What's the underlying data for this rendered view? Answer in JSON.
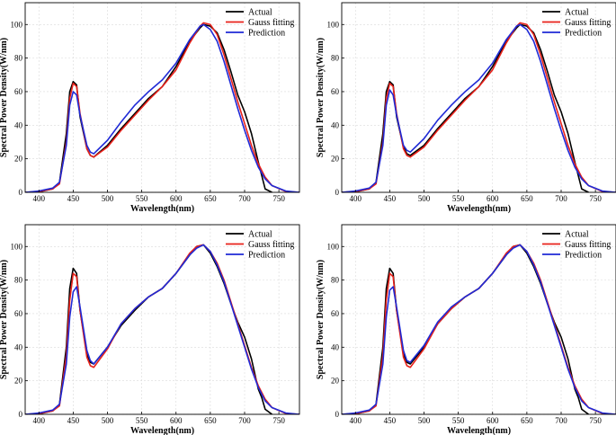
{
  "chart_data": [
    {
      "type": "line",
      "panel": "top-left",
      "xlabel": "Wavelength(nm)",
      "ylabel": "Spectral Power Density(W/nm)",
      "xlim": [
        380,
        780
      ],
      "ylim": [
        0,
        113
      ],
      "xticks": [
        400,
        450,
        500,
        550,
        600,
        650,
        700,
        750
      ],
      "yticks": [
        0,
        20,
        40,
        60,
        80,
        100
      ],
      "grid": true,
      "legend_position": "top-right",
      "series": [
        {
          "name": "Actual",
          "color": "#000000",
          "x": [
            380,
            400,
            420,
            430,
            440,
            445,
            450,
            455,
            460,
            470,
            475,
            480,
            500,
            520,
            540,
            560,
            580,
            600,
            620,
            635,
            640,
            650,
            660,
            670,
            680,
            690,
            700,
            710,
            720,
            725,
            730,
            740
          ],
          "y": [
            0,
            0.3,
            2,
            6,
            35,
            60,
            66,
            64,
            45,
            26,
            22,
            21,
            28,
            38,
            47,
            56,
            63,
            75,
            90,
            98,
            100,
            99,
            95,
            85,
            72,
            58,
            48,
            35,
            18,
            10,
            2,
            0
          ]
        },
        {
          "name": "Gauss fitting",
          "color": "#e8211a",
          "x": [
            380,
            400,
            420,
            430,
            440,
            445,
            450,
            455,
            460,
            470,
            475,
            480,
            500,
            520,
            540,
            560,
            580,
            600,
            620,
            635,
            640,
            650,
            660,
            670,
            680,
            690,
            700,
            710,
            720,
            730,
            740,
            760,
            780
          ],
          "y": [
            0,
            0.5,
            2,
            5,
            30,
            56,
            65,
            63,
            47,
            26,
            22,
            21,
            27,
            37,
            46,
            55,
            63,
            73,
            89,
            99,
            101,
            100,
            94,
            82,
            68,
            54,
            41,
            28,
            17,
            9,
            4,
            0.5,
            0
          ]
        },
        {
          "name": "Prediction",
          "color": "#1f2ad6",
          "x": [
            380,
            400,
            420,
            430,
            440,
            445,
            450,
            455,
            460,
            470,
            475,
            480,
            500,
            520,
            540,
            560,
            580,
            600,
            620,
            635,
            640,
            650,
            660,
            670,
            680,
            690,
            700,
            710,
            720,
            730,
            740,
            760,
            780
          ],
          "y": [
            0,
            0.8,
            2.5,
            6,
            28,
            52,
            60,
            58,
            46,
            28,
            24,
            23,
            31,
            42,
            52,
            60,
            67,
            77,
            91,
            99,
            100,
            97,
            90,
            78,
            64,
            50,
            37,
            25,
            15,
            8,
            4,
            0.8,
            0
          ]
        }
      ]
    },
    {
      "type": "line",
      "panel": "top-right",
      "xlabel": "Wavelength(nm)",
      "ylabel": "Spectral Power Density(W/nm)",
      "xlim": [
        380,
        780
      ],
      "ylim": [
        0,
        113
      ],
      "xticks": [
        400,
        450,
        500,
        550,
        600,
        650,
        700,
        750
      ],
      "yticks": [
        0,
        20,
        40,
        60,
        80,
        100
      ],
      "grid": true,
      "legend_position": "top-right",
      "series": [
        {
          "name": "Actual",
          "color": "#000000",
          "x": [
            380,
            400,
            420,
            430,
            440,
            445,
            450,
            455,
            460,
            470,
            475,
            480,
            500,
            520,
            540,
            560,
            580,
            600,
            620,
            635,
            640,
            650,
            660,
            670,
            680,
            690,
            700,
            710,
            720,
            725,
            730,
            740
          ],
          "y": [
            0,
            0.3,
            2,
            6,
            35,
            60,
            66,
            64,
            45,
            27,
            23,
            22,
            28,
            38,
            47,
            56,
            63,
            75,
            90,
            98,
            100,
            99,
            95,
            85,
            72,
            58,
            48,
            35,
            18,
            10,
            2,
            0
          ]
        },
        {
          "name": "Gauss fitting",
          "color": "#e8211a",
          "x": [
            380,
            400,
            420,
            430,
            440,
            445,
            450,
            455,
            460,
            470,
            475,
            480,
            500,
            520,
            540,
            560,
            580,
            600,
            620,
            635,
            640,
            650,
            660,
            670,
            680,
            690,
            700,
            710,
            720,
            730,
            740,
            760,
            780
          ],
          "y": [
            0,
            0.5,
            2,
            5,
            30,
            56,
            65,
            63,
            47,
            26,
            22,
            21,
            27,
            37,
            46,
            55,
            63,
            73,
            89,
            99,
            101,
            100,
            94,
            82,
            68,
            54,
            41,
            28,
            17,
            9,
            4,
            0.5,
            0
          ]
        },
        {
          "name": "Prediction",
          "color": "#1f2ad6",
          "x": [
            380,
            400,
            420,
            430,
            440,
            445,
            450,
            455,
            460,
            470,
            475,
            480,
            500,
            520,
            540,
            560,
            580,
            600,
            620,
            635,
            640,
            650,
            660,
            670,
            680,
            690,
            700,
            710,
            720,
            730,
            740,
            760,
            780
          ],
          "y": [
            0,
            0.8,
            2.5,
            6,
            28,
            52,
            61,
            58,
            46,
            28,
            25,
            24,
            32,
            43,
            52,
            60,
            67,
            77,
            91,
            99,
            100,
            97,
            90,
            78,
            64,
            50,
            37,
            25,
            15,
            8,
            4,
            0.8,
            0
          ]
        }
      ]
    },
    {
      "type": "line",
      "panel": "bottom-left",
      "xlabel": "Wavelength(nm)",
      "ylabel": "Spectral Power Density(W/nm)",
      "xlim": [
        380,
        780
      ],
      "ylim": [
        0,
        113
      ],
      "xticks": [
        400,
        450,
        500,
        550,
        600,
        650,
        700,
        750
      ],
      "yticks": [
        0,
        20,
        40,
        60,
        80,
        100
      ],
      "grid": true,
      "legend_position": "top-right",
      "series": [
        {
          "name": "Actual",
          "color": "#000000",
          "x": [
            380,
            400,
            420,
            430,
            440,
            445,
            450,
            455,
            460,
            470,
            475,
            480,
            500,
            520,
            540,
            560,
            580,
            600,
            620,
            630,
            640,
            650,
            660,
            670,
            680,
            690,
            700,
            710,
            720,
            725,
            730,
            740
          ],
          "y": [
            0,
            0.3,
            2,
            6,
            40,
            75,
            87,
            84,
            62,
            36,
            31,
            30,
            40,
            53,
            62,
            70,
            75,
            84,
            95,
            100,
            101,
            96,
            88,
            78,
            66,
            55,
            46,
            33,
            15,
            10,
            3,
            0
          ]
        },
        {
          "name": "Gauss fitting",
          "color": "#e8211a",
          "x": [
            380,
            400,
            420,
            430,
            440,
            445,
            450,
            455,
            460,
            470,
            475,
            480,
            500,
            520,
            540,
            560,
            580,
            600,
            620,
            630,
            640,
            650,
            660,
            670,
            680,
            690,
            700,
            710,
            720,
            730,
            740,
            760,
            780
          ],
          "y": [
            0,
            0.5,
            2,
            5,
            35,
            68,
            84,
            82,
            62,
            34,
            29,
            28,
            39,
            54,
            63,
            70,
            75,
            84,
            96,
            100,
            101,
            97,
            90,
            80,
            67,
            54,
            41,
            28,
            17,
            9,
            4,
            0.5,
            0
          ]
        },
        {
          "name": "Prediction",
          "color": "#1f2ad6",
          "x": [
            380,
            400,
            420,
            430,
            440,
            445,
            450,
            455,
            460,
            470,
            475,
            480,
            500,
            520,
            540,
            560,
            580,
            600,
            620,
            630,
            640,
            650,
            660,
            670,
            680,
            690,
            700,
            710,
            720,
            730,
            740,
            760,
            780
          ],
          "y": [
            0,
            0.8,
            2.5,
            6,
            30,
            58,
            73,
            76,
            64,
            38,
            32,
            30,
            40,
            54,
            63,
            70,
            75,
            84,
            95,
            99,
            101,
            97,
            89,
            79,
            66,
            53,
            40,
            27,
            16,
            8,
            4,
            0.8,
            0
          ]
        }
      ]
    },
    {
      "type": "line",
      "panel": "bottom-right",
      "xlabel": "Wavelength(nm)",
      "ylabel": "Spectral Power Density(W/nm)",
      "xlim": [
        380,
        780
      ],
      "ylim": [
        0,
        113
      ],
      "xticks": [
        400,
        450,
        500,
        550,
        600,
        650,
        700,
        750
      ],
      "yticks": [
        0,
        20,
        40,
        60,
        80,
        100
      ],
      "grid": true,
      "legend_position": "top-right",
      "series": [
        {
          "name": "Actual",
          "color": "#000000",
          "x": [
            380,
            400,
            420,
            430,
            440,
            445,
            450,
            455,
            460,
            470,
            475,
            480,
            500,
            520,
            540,
            560,
            580,
            600,
            620,
            630,
            640,
            650,
            660,
            670,
            680,
            690,
            700,
            710,
            720,
            725,
            730,
            740
          ],
          "y": [
            0,
            0.3,
            2,
            6,
            40,
            75,
            87,
            84,
            62,
            36,
            31,
            30,
            40,
            54,
            63,
            70,
            75,
            84,
            95,
            100,
            101,
            96,
            88,
            78,
            66,
            55,
            46,
            33,
            15,
            10,
            3,
            0
          ]
        },
        {
          "name": "Gauss fitting",
          "color": "#e8211a",
          "x": [
            380,
            400,
            420,
            430,
            440,
            445,
            450,
            455,
            460,
            470,
            475,
            480,
            500,
            520,
            540,
            560,
            580,
            600,
            620,
            630,
            640,
            650,
            660,
            670,
            680,
            690,
            700,
            710,
            720,
            730,
            740,
            760,
            780
          ],
          "y": [
            0,
            0.5,
            2,
            5,
            35,
            68,
            84,
            82,
            62,
            34,
            29,
            28,
            39,
            54,
            63,
            70,
            75,
            84,
            96,
            100,
            101,
            97,
            90,
            80,
            67,
            54,
            41,
            28,
            17,
            9,
            4,
            0.5,
            0
          ]
        },
        {
          "name": "Prediction",
          "color": "#1f2ad6",
          "x": [
            380,
            400,
            420,
            430,
            440,
            445,
            450,
            455,
            460,
            470,
            475,
            480,
            500,
            520,
            540,
            560,
            580,
            600,
            620,
            630,
            640,
            650,
            660,
            670,
            680,
            690,
            700,
            710,
            720,
            730,
            740,
            760,
            780
          ],
          "y": [
            0,
            0.8,
            2.5,
            6,
            30,
            58,
            74,
            76,
            64,
            38,
            32,
            31,
            41,
            55,
            64,
            70,
            75,
            84,
            95,
            99,
            101,
            97,
            89,
            79,
            66,
            53,
            40,
            27,
            16,
            8,
            4,
            0.8,
            0
          ]
        }
      ]
    }
  ]
}
